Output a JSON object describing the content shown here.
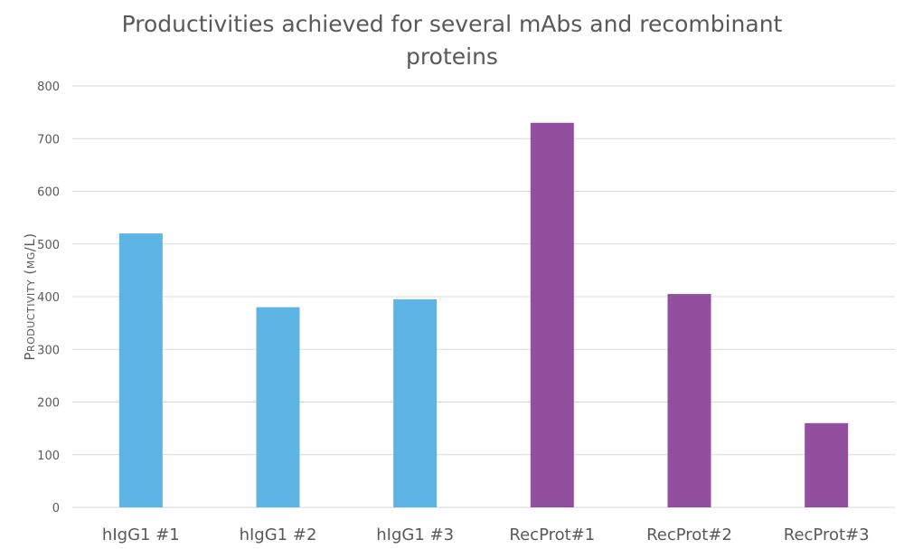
{
  "chart_data": {
    "type": "bar",
    "title": "Productivities achieved for several mAbs and recombinant proteins",
    "title_lines": [
      "Productivities achieved for several mAbs and recombinant",
      "proteins"
    ],
    "xlabel": "",
    "ylabel": "Productivity (mg/L)",
    "ylim": [
      0,
      800
    ],
    "yticks": [
      0,
      100,
      200,
      300,
      400,
      500,
      600,
      700,
      800
    ],
    "grid": true,
    "categories": [
      "hIgG1 #1",
      "hIgG1 #2",
      "hIgG1 #3",
      "RecProt#1",
      "RecProt#2",
      "RecProt#3"
    ],
    "values": [
      520,
      380,
      395,
      730,
      405,
      160
    ],
    "colors": [
      "#5eb4e4",
      "#5eb4e4",
      "#5eb4e4",
      "#914f9e",
      "#914f9e",
      "#914f9e"
    ]
  }
}
